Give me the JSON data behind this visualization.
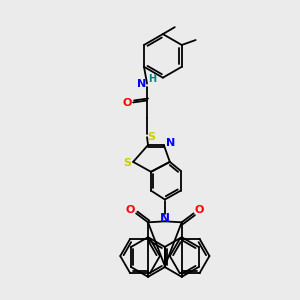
{
  "bg_color": "#ebebeb",
  "bond_color": "#000000",
  "atom_colors": {
    "N": "#0000ff",
    "O": "#ff0000",
    "S": "#cccc00",
    "H": "#008080",
    "C": "#000000"
  },
  "lw": 1.3
}
